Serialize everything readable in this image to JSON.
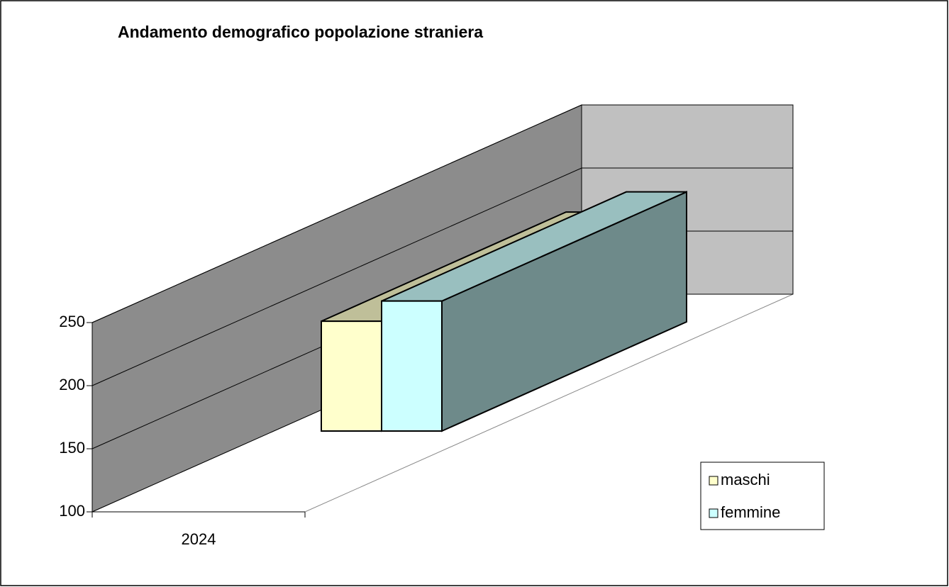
{
  "chart_data": {
    "type": "bar3d",
    "title": "Andamento demografico popolazione straniera",
    "categories": [
      "2024"
    ],
    "series": [
      {
        "name": "maschi",
        "color": "#ffffcc",
        "values": [
          187
        ]
      },
      {
        "name": "femmine",
        "color": "#ccffff",
        "values": [
          203
        ]
      }
    ],
    "ylim": [
      100,
      250
    ],
    "yticks": [
      100,
      150,
      200,
      250
    ],
    "grid": true,
    "legend": "right"
  }
}
